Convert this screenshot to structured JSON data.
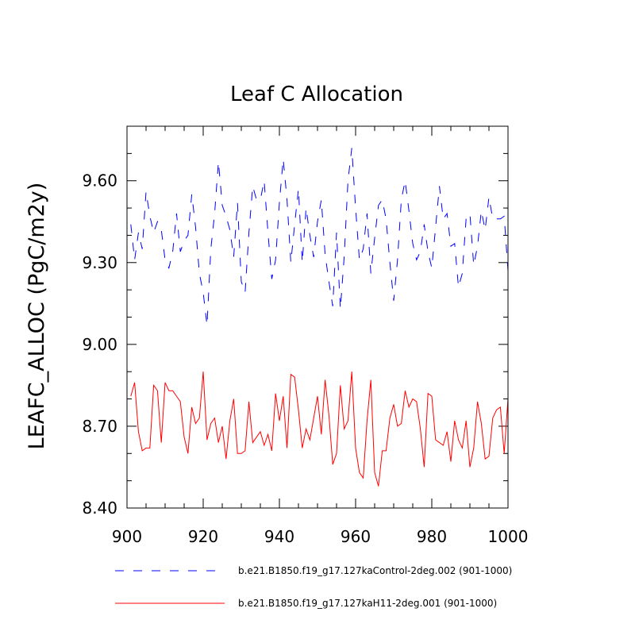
{
  "chart_data": {
    "type": "line",
    "title": "Leaf C Allocation",
    "ylabel": "LEAFC_ALLOC  (PgC/m2y)",
    "xlabel": "",
    "xlim": [
      900,
      1000
    ],
    "ylim": [
      8.4,
      9.8
    ],
    "x_ticks": [
      900,
      920,
      940,
      960,
      980,
      1000
    ],
    "x_tick_labels": [
      "900",
      "920",
      "940",
      "960",
      "980",
      "1000"
    ],
    "y_ticks": [
      8.4,
      8.7,
      9.0,
      9.3,
      9.6
    ],
    "y_tick_labels": [
      "8.40",
      "8.70",
      "9.00",
      "9.30",
      "9.60"
    ],
    "x_minor_step": 5,
    "y_minor_step": 0.1,
    "grid": false,
    "legend_position": "bottom",
    "x_start": 901,
    "x_step": 1,
    "series": [
      {
        "name": "b.e21.B1850.f19_g17.127kaControl-2deg.002 (901-1000)",
        "color": "#0000ff",
        "dash": "dashed",
        "values": [
          9.44,
          9.31,
          9.41,
          9.35,
          9.56,
          9.47,
          9.41,
          9.45,
          9.42,
          9.31,
          9.28,
          9.34,
          9.48,
          9.34,
          9.38,
          9.4,
          9.55,
          9.43,
          9.26,
          9.19,
          9.07,
          9.35,
          9.48,
          9.67,
          9.51,
          9.47,
          9.42,
          9.32,
          9.52,
          9.23,
          9.19,
          9.41,
          9.58,
          9.53,
          9.53,
          9.6,
          9.41,
          9.24,
          9.31,
          9.52,
          9.68,
          9.53,
          9.3,
          9.44,
          9.57,
          9.3,
          9.5,
          9.4,
          9.32,
          9.45,
          9.53,
          9.33,
          9.23,
          9.14,
          9.41,
          9.13,
          9.32,
          9.6,
          9.72,
          9.5,
          9.31,
          9.35,
          9.48,
          9.26,
          9.39,
          9.51,
          9.53,
          9.46,
          9.3,
          9.16,
          9.31,
          9.53,
          9.6,
          9.49,
          9.37,
          9.31,
          9.34,
          9.44,
          9.34,
          9.28,
          9.43,
          9.58,
          9.46,
          9.48,
          9.36,
          9.37,
          9.21,
          9.26,
          9.46,
          9.48,
          9.29,
          9.36,
          9.49,
          9.42,
          9.54,
          9.46,
          9.46,
          9.46,
          9.47,
          9.27
        ]
      },
      {
        "name": "b.e21.B1850.f19_g17.127kaH11-2deg.001 (901-1000)",
        "color": "#ff0000",
        "dash": "solid",
        "values": [
          8.81,
          8.86,
          8.68,
          8.61,
          8.62,
          8.62,
          8.85,
          8.83,
          8.64,
          8.86,
          8.83,
          8.83,
          8.81,
          8.79,
          8.66,
          8.6,
          8.77,
          8.71,
          8.73,
          8.9,
          8.65,
          8.71,
          8.73,
          8.64,
          8.7,
          8.58,
          8.72,
          8.8,
          8.6,
          8.6,
          8.61,
          8.79,
          8.64,
          8.66,
          8.68,
          8.63,
          8.67,
          8.61,
          8.82,
          8.72,
          8.81,
          8.62,
          8.89,
          8.88,
          8.76,
          8.62,
          8.69,
          8.65,
          8.73,
          8.81,
          8.67,
          8.87,
          8.74,
          8.56,
          8.6,
          8.85,
          8.69,
          8.72,
          8.9,
          8.62,
          8.53,
          8.51,
          8.72,
          8.87,
          8.53,
          8.48,
          8.61,
          8.61,
          8.73,
          8.78,
          8.7,
          8.71,
          8.83,
          8.77,
          8.8,
          8.79,
          8.69,
          8.55,
          8.82,
          8.81,
          8.65,
          8.64,
          8.63,
          8.68,
          8.57,
          8.72,
          8.65,
          8.62,
          8.72,
          8.55,
          8.62,
          8.79,
          8.71,
          8.58,
          8.59,
          8.73,
          8.76,
          8.77,
          8.6,
          8.8
        ]
      }
    ]
  }
}
